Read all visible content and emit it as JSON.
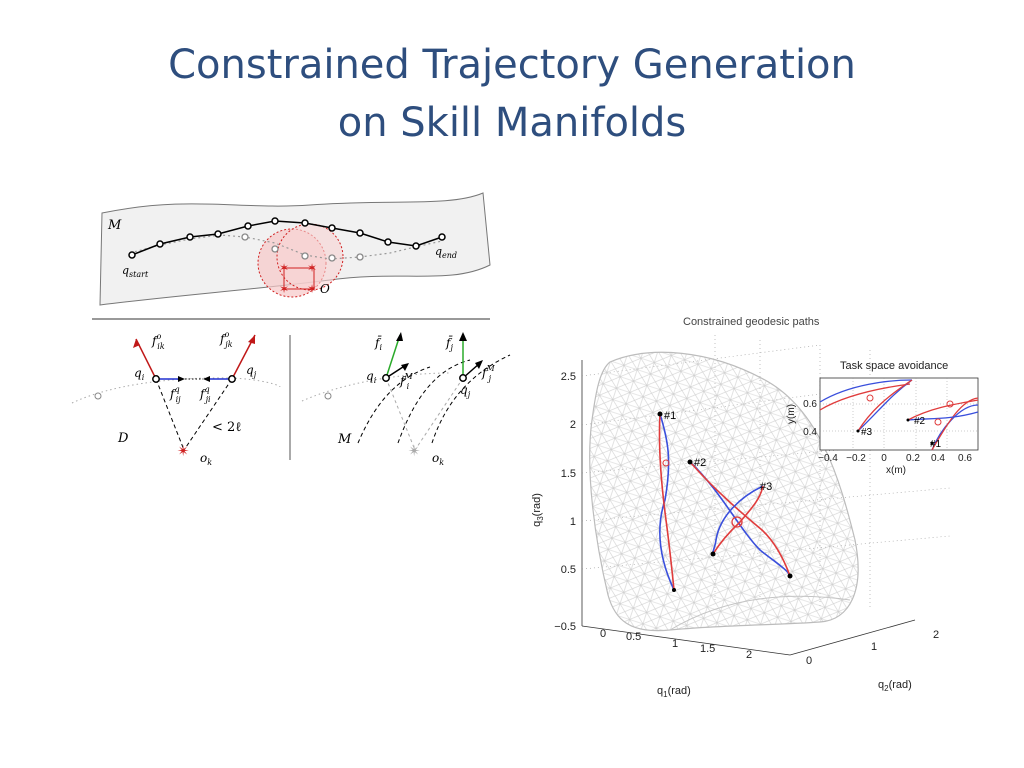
{
  "slide": {
    "title_line1": "Constrained Trajectory Generation",
    "title_line2": "on Skill Manifolds"
  },
  "manifold_figure": {
    "manifold_label": "M",
    "q_start": "q",
    "q_start_sub": "start",
    "q_end": "q",
    "q_end_sub": "end",
    "obstacle_label": "O"
  },
  "force_figure_left": {
    "f_ik": "f",
    "f_ik_sup": "o",
    "f_ik_sub": "ik",
    "f_jk": "f",
    "f_jk_sup": "o",
    "f_jk_sub": "jk",
    "q_i": "q",
    "q_i_sub": "i",
    "q_j": "q",
    "q_j_sub": "j",
    "f_ij": "f",
    "f_ij_sup": "q",
    "f_ij_sub": "ij",
    "f_ji": "f",
    "f_ji_sup": "q",
    "f_ji_sub": "ji",
    "dist": "< 2ℓ",
    "D": "D",
    "o_k": "o",
    "o_k_sub": "k"
  },
  "force_figure_right": {
    "f_i_bar": "f̄",
    "f_i_sub": "i",
    "f_j_bar": "f̄",
    "f_j_sub": "j",
    "q_i": "q",
    "q_i_sub": "i",
    "q_j": "q",
    "q_j_sub": "j",
    "f_i_M": "f",
    "f_i_M_sub": "i",
    "f_i_M_sup": "M",
    "f_j_M": "f",
    "f_j_M_sub": "j",
    "f_j_M_sup": "M",
    "M": "M",
    "o_k": "o",
    "o_k_sub": "k"
  },
  "geodesic_plot": {
    "title": "Constrained geodesic paths",
    "zlabel_main": "q",
    "zlabel_sub": "3",
    "zlabel_unit": "(rad)",
    "xlabel_main": "q",
    "xlabel_sub": "1",
    "xlabel_unit": "(rad)",
    "ylabel_main": "q",
    "ylabel_sub": "2",
    "ylabel_unit": "(rad)",
    "z_ticks": [
      "2.5",
      "2",
      "1.5",
      "1",
      "0.5",
      "−0.5"
    ],
    "x_ticks": [
      "0",
      "0.5",
      "1",
      "1.5",
      "2"
    ],
    "y_ticks": [
      "0",
      "1",
      "2"
    ],
    "path_labels": [
      "#1",
      "#2",
      "#3"
    ],
    "colors": {
      "constrained": "#e03c3c",
      "unconstrained": "#3a4fdc",
      "mesh": "#c8c8c8"
    }
  },
  "inset_plot": {
    "title": "Task space avoidance",
    "ylabel": "y(m)",
    "xlabel": "x(m)",
    "y_ticks": [
      "0.6",
      "0.4"
    ],
    "x_ticks": [
      "−0.4",
      "−0.2",
      "0",
      "0.2",
      "0.4",
      "0.6"
    ],
    "path_labels": [
      "#3",
      "#2",
      "#1"
    ]
  }
}
